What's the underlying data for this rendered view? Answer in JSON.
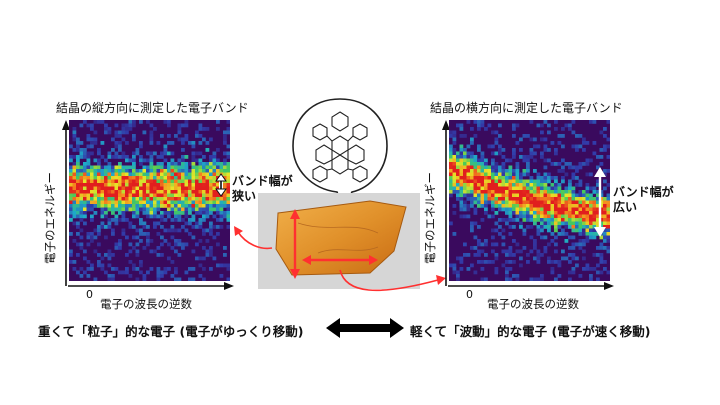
{
  "left_panel": {
    "title": "結晶の縦方向に測定した電子バンド",
    "ylabel": "電子のエネルギー",
    "xlabel": "電子の波長の逆数",
    "zero": "0",
    "annotation": [
      "バンド幅が",
      "狭い"
    ]
  },
  "right_panel": {
    "title": "結晶の横方向に測定した電子バンド",
    "ylabel": "電子のエネルギー",
    "xlabel": "電子の波長の逆数",
    "zero": "0",
    "annotation": [
      "バンド幅が",
      "広い"
    ]
  },
  "bottom": {
    "left_text": "重くて「粒子」的な電子 (電子がゆっくり移動)",
    "right_text": "軽くて「波動」的な電子 (電子が速く移動)"
  },
  "colors": {
    "background": "#3a0a5e",
    "band_peak": "#e02020",
    "crystal": "#e0902a",
    "arrow": "#ff3030"
  }
}
